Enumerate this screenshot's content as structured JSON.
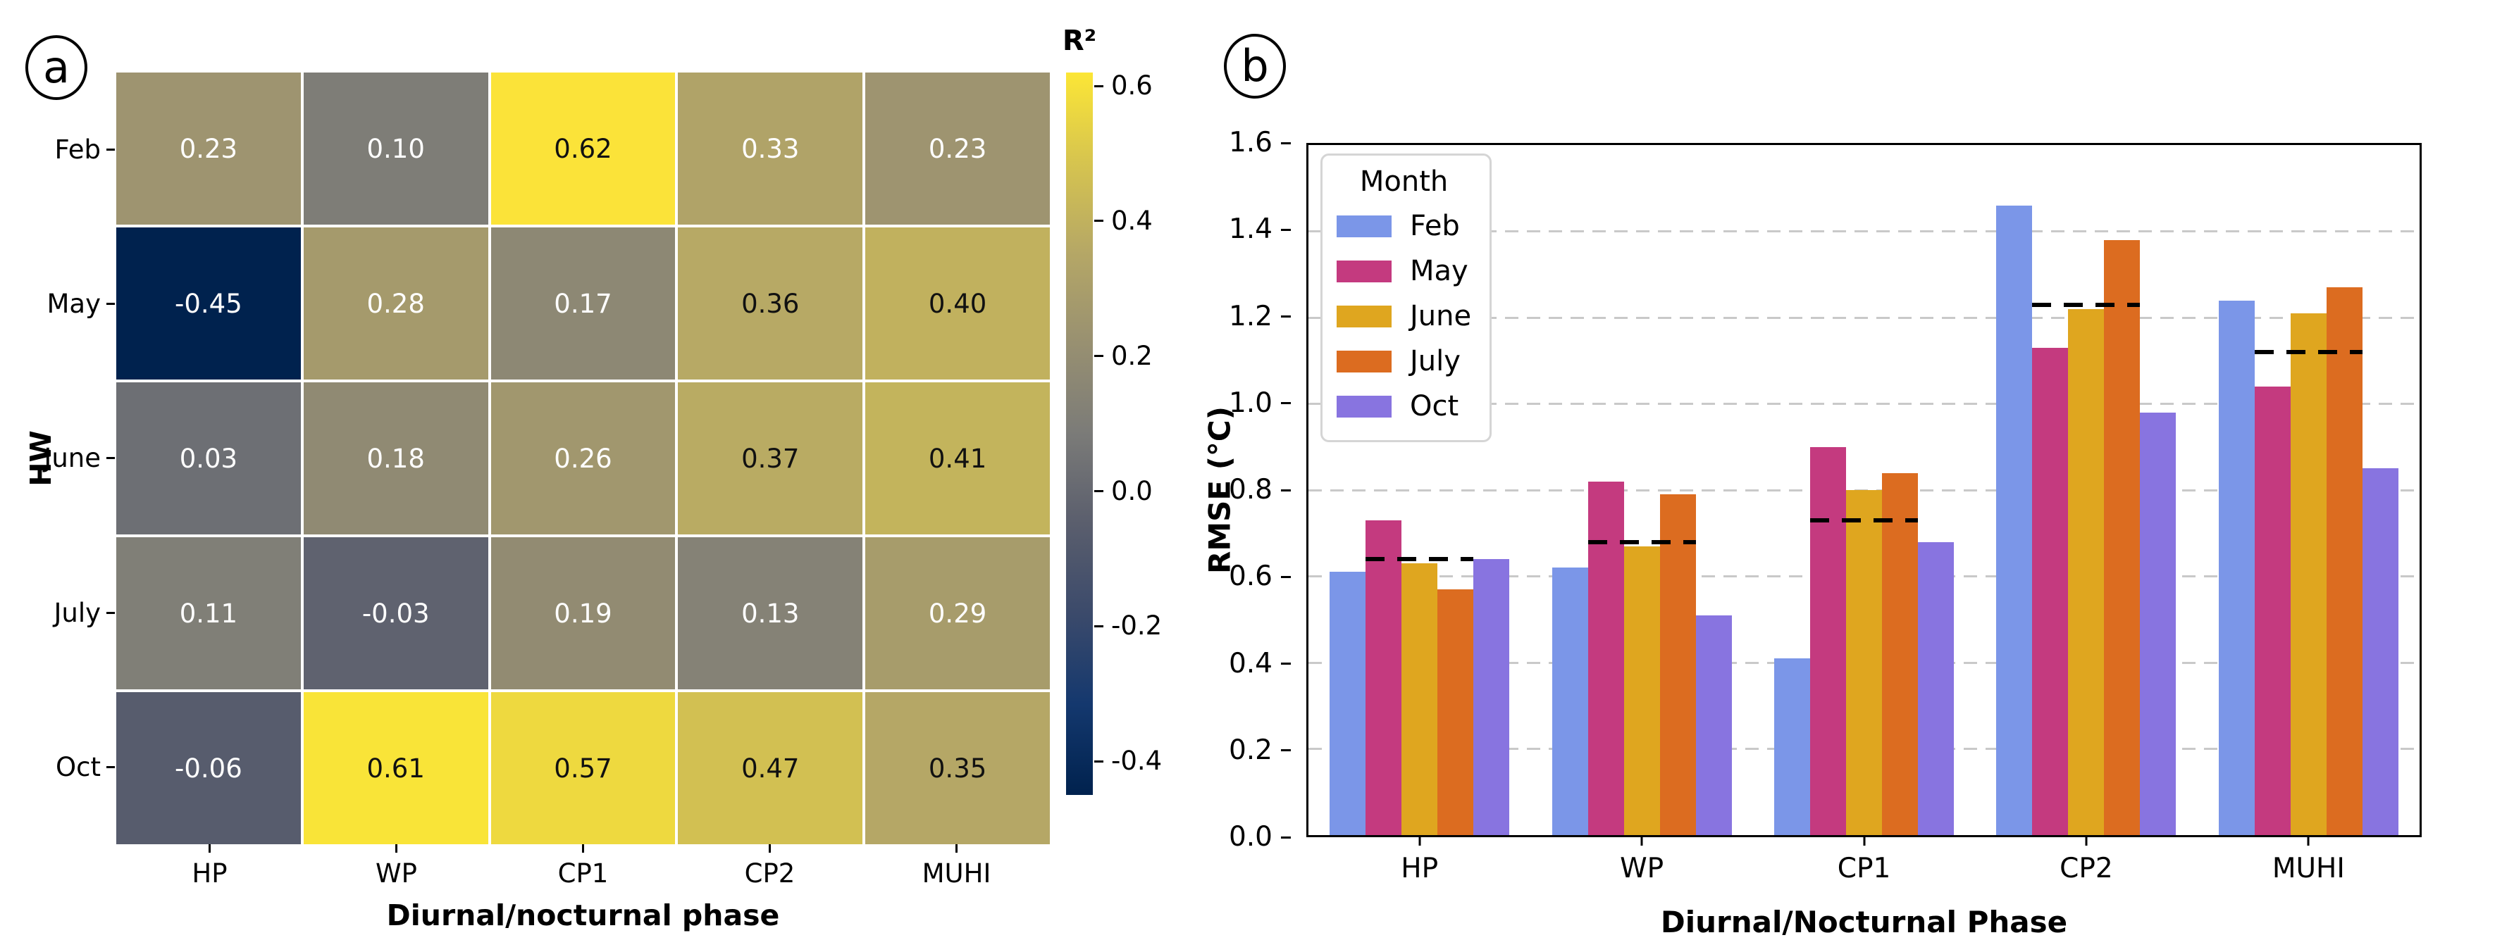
{
  "chart_data": [
    {
      "type": "heatmap",
      "panel_letter": "a",
      "xlabel": "Diurnal/nocturnal phase",
      "ylabel": "HW",
      "x_categories": [
        "HP",
        "WP",
        "CP1",
        "CP2",
        "MUHI"
      ],
      "y_categories": [
        "Feb",
        "May",
        "June",
        "July",
        "Oct"
      ],
      "values": [
        [
          0.23,
          0.1,
          0.62,
          0.33,
          0.23
        ],
        [
          -0.45,
          0.28,
          0.17,
          0.36,
          0.4
        ],
        [
          0.03,
          0.18,
          0.26,
          0.37,
          0.41
        ],
        [
          0.11,
          -0.03,
          0.19,
          0.13,
          0.29
        ],
        [
          -0.06,
          0.61,
          0.57,
          0.47,
          0.35
        ]
      ],
      "cell_colors": [
        [
          "#9e9470",
          "#7e7d77",
          "#fbe339",
          "#b0a368",
          "#9e9470"
        ],
        [
          "#00224e",
          "#a59a6c",
          "#8d8874",
          "#b7a965",
          "#c1b15e"
        ],
        [
          "#6d6f74",
          "#908a73",
          "#a1976e",
          "#b9ab63",
          "#c3b45c"
        ],
        [
          "#807f77",
          "#5f626f",
          "#928b72",
          "#858276",
          "#a79c6b"
        ],
        [
          "#575c6d",
          "#f9e438",
          "#eed93f",
          "#d2c052",
          "#b5a766"
        ]
      ],
      "text_rule": {
        "dark_min": 0.34,
        "dark": "#111111",
        "light": "#ffffff"
      },
      "colormap": "cividis",
      "vmin": -0.45,
      "vmax": 0.62,
      "colorbar": {
        "label": "R²",
        "ticks": [
          0.6,
          0.4,
          0.2,
          0.0,
          -0.2,
          -0.4
        ],
        "gradient_stops": [
          [
            "0%",
            "#00224e"
          ],
          [
            "12.5%",
            "#14386e"
          ],
          [
            "25%",
            "#3b4a6b"
          ],
          [
            "37.5%",
            "#5a5e6d"
          ],
          [
            "50%",
            "#7b7b78"
          ],
          [
            "62.5%",
            "#989071"
          ],
          [
            "75%",
            "#b5a766"
          ],
          [
            "87.5%",
            "#d6c44f"
          ],
          [
            "100%",
            "#fce636"
          ]
        ]
      }
    },
    {
      "type": "bar",
      "panel_letter": "b",
      "categories": [
        "HP",
        "WP",
        "CP1",
        "CP2",
        "MUHI"
      ],
      "series": [
        {
          "name": "Feb",
          "color": "#7b96e8",
          "values": [
            0.61,
            0.62,
            0.41,
            1.46,
            1.24
          ]
        },
        {
          "name": "May",
          "color": "#c43a7f",
          "values": [
            0.73,
            0.82,
            0.9,
            1.13,
            1.04
          ]
        },
        {
          "name": "June",
          "color": "#dfa61f",
          "values": [
            0.63,
            0.67,
            0.8,
            1.22,
            1.21
          ]
        },
        {
          "name": "July",
          "color": "#dc6c20",
          "values": [
            0.57,
            0.79,
            0.84,
            1.38,
            1.27
          ]
        },
        {
          "name": "Oct",
          "color": "#8874e0",
          "values": [
            0.64,
            0.51,
            0.68,
            0.98,
            0.85
          ]
        }
      ],
      "group_means": [
        0.64,
        0.68,
        0.73,
        1.23,
        1.12
      ],
      "mean_line_style": "black dashed",
      "xlabel": "Diurnal/Nocturnal Phase",
      "ylabel": "RMSE (°C)",
      "ylim": [
        0,
        1.6
      ],
      "yticks": [
        0.0,
        0.2,
        0.4,
        0.6,
        0.8,
        1.0,
        1.2,
        1.4,
        1.6
      ],
      "grid": {
        "axis": "y",
        "style": "dashed",
        "color": "#c9c9c9"
      },
      "legend": {
        "title": "Month",
        "position": "upper left"
      }
    }
  ]
}
